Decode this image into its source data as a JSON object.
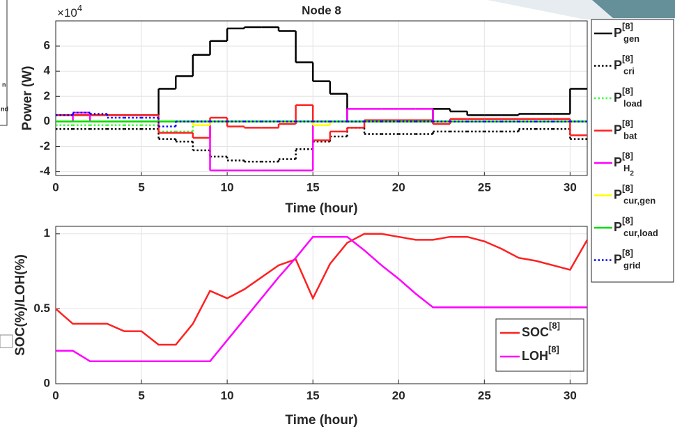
{
  "cropped_fragments": [
    "n",
    "nd"
  ],
  "chart_data": [
    {
      "type": "stairs",
      "title": "Node 8",
      "multiplier": "×10",
      "multiplier_exponent": "4",
      "x_label": "Time (hour)",
      "y_label": "Power (W)",
      "x": [
        0,
        1,
        2,
        3,
        4,
        5,
        6,
        7,
        8,
        9,
        10,
        11,
        12,
        13,
        14,
        15,
        16,
        17,
        18,
        19,
        20,
        21,
        22,
        23,
        24,
        25,
        26,
        27,
        28,
        29,
        30,
        31
      ],
      "xlim": [
        0,
        31
      ],
      "xticks": [
        0,
        5,
        10,
        15,
        20,
        25,
        30
      ],
      "ylim": [
        -4.3,
        8
      ],
      "yticks": [
        -4,
        -2,
        0,
        2,
        4,
        6
      ],
      "grid": true,
      "legend": "outside-right",
      "series": [
        {
          "name": "P",
          "superscript": "[8]",
          "subscript": "gen",
          "color": "#000000",
          "style": "solid",
          "values": [
            0.5,
            0.5,
            0.5,
            0.5,
            0.5,
            0.5,
            2.6,
            3.6,
            5.3,
            6.4,
            7.4,
            7.5,
            7.5,
            7.2,
            4.7,
            3.2,
            2.2,
            0,
            0,
            0,
            0,
            0,
            1.0,
            0.8,
            0.5,
            0.5,
            0.5,
            0.6,
            0.6,
            0.6,
            2.6,
            2.6
          ]
        },
        {
          "name": "P",
          "superscript": "[8]",
          "subscript": "cri",
          "color": "#000000",
          "style": "dotted",
          "values": [
            -0.6,
            -0.6,
            -0.6,
            -0.6,
            -0.6,
            -0.6,
            -1.4,
            -1.6,
            -2.3,
            -2.8,
            -3.1,
            -3.2,
            -3.2,
            -3.0,
            -2.2,
            -1.6,
            -1.2,
            -0.5,
            -1.0,
            -1.0,
            -1.0,
            -1.0,
            -0.8,
            -0.8,
            -0.8,
            -0.8,
            -0.8,
            -0.6,
            -0.6,
            -0.6,
            -1.4,
            -1.4
          ]
        },
        {
          "name": "P",
          "superscript": "[8]",
          "subscript": "load",
          "color": "#33ff33",
          "style": "dotted",
          "values": [
            -0.3,
            -0.3,
            -0.3,
            -0.3,
            -0.3,
            -0.3,
            -0.8,
            -0.8,
            0,
            0,
            0,
            0,
            0,
            0,
            0,
            0,
            0,
            0,
            0,
            0,
            0,
            0,
            0,
            0,
            0,
            0,
            0,
            0,
            0,
            0,
            0,
            0
          ]
        },
        {
          "name": "P",
          "superscript": "[8]",
          "subscript": "bat",
          "color": "#ff2020",
          "style": "solid",
          "values": [
            0.5,
            0.5,
            0.5,
            0.5,
            0.5,
            0.5,
            -0.9,
            -0.9,
            -1.3,
            0.3,
            -0.4,
            -0.5,
            -0.5,
            -0.2,
            1.3,
            -1.5,
            -0.8,
            -0.5,
            0.1,
            0.1,
            0.1,
            0.1,
            -0.2,
            0.2,
            0.2,
            0.2,
            0.2,
            0.2,
            0.2,
            0.2,
            -1.1,
            -1.1
          ]
        },
        {
          "name": "P",
          "superscript": "[8]",
          "subscript": "H",
          "subscript2": "2",
          "color": "#ff00ff",
          "style": "solid",
          "values": [
            0,
            0.7,
            0,
            0,
            0,
            0,
            0,
            0,
            0,
            -3.9,
            -3.9,
            -3.9,
            -3.9,
            -3.9,
            -3.9,
            0,
            0,
            1.0,
            1.0,
            1.0,
            1.0,
            1.0,
            0,
            0,
            0,
            0,
            0,
            0,
            0,
            0,
            0,
            0
          ]
        },
        {
          "name": "P",
          "superscript": "[8]",
          "subscript": "cur,gen",
          "color": "#ffff00",
          "style": "solid",
          "values": [
            0,
            0,
            0,
            0,
            0,
            0,
            0,
            0,
            -0.3,
            0,
            0,
            0,
            0,
            0,
            0,
            -0.3,
            0,
            0,
            0,
            0,
            0,
            0,
            0,
            0,
            0,
            0,
            0,
            0,
            0,
            0,
            0,
            0
          ]
        },
        {
          "name": "P",
          "superscript": "[8]",
          "subscript": "cur,load",
          "color": "#00dd00",
          "style": "solid",
          "values": [
            0,
            0,
            0,
            0,
            0,
            0,
            0,
            0,
            0,
            0,
            0,
            0,
            0,
            0,
            0,
            0,
            0,
            0,
            0,
            0,
            0,
            0,
            0,
            0,
            0,
            0,
            0,
            0,
            0,
            0,
            0,
            0
          ]
        },
        {
          "name": "P",
          "superscript": "[8]",
          "subscript": "grid",
          "color": "#0000ff",
          "style": "dotted",
          "values": [
            0.5,
            0.7,
            0.6,
            0.3,
            0.3,
            0.3,
            -0.4,
            0,
            0,
            0,
            0,
            0,
            0,
            0,
            0,
            0,
            0,
            0,
            0,
            0,
            0,
            0,
            0,
            0,
            0,
            0,
            0,
            0,
            0,
            0,
            0,
            0
          ]
        }
      ]
    },
    {
      "type": "line",
      "x_label": "Time (hour)",
      "y_label": "SOC(%)/LOH(%)",
      "x": [
        0,
        1,
        2,
        3,
        4,
        5,
        6,
        7,
        8,
        9,
        10,
        11,
        12,
        13,
        14,
        15,
        16,
        17,
        18,
        19,
        20,
        21,
        22,
        23,
        24,
        25,
        26,
        27,
        28,
        29,
        30,
        31
      ],
      "xlim": [
        0,
        31
      ],
      "xticks": [
        0,
        5,
        10,
        15,
        20,
        25,
        30
      ],
      "ylim": [
        0,
        1.05
      ],
      "yticks": [
        0,
        0.5,
        1
      ],
      "grid": true,
      "legend": "lower-right",
      "series": [
        {
          "name": "SOC",
          "superscript": "[8]",
          "color": "#ff2020",
          "style": "solid",
          "values": [
            0.5,
            0.4,
            0.4,
            0.4,
            0.35,
            0.35,
            0.26,
            0.26,
            0.4,
            0.62,
            0.57,
            0.63,
            0.71,
            0.79,
            0.83,
            0.57,
            0.8,
            0.94,
            1.0,
            1.0,
            0.98,
            0.96,
            0.96,
            0.98,
            0.98,
            0.95,
            0.9,
            0.84,
            0.82,
            0.79,
            0.76,
            0.96
          ]
        },
        {
          "name": "LOH",
          "superscript": "[8]",
          "color": "#ff00ff",
          "style": "solid",
          "values": [
            0.22,
            0.22,
            0.15,
            0.15,
            0.15,
            0.15,
            0.15,
            0.15,
            0.15,
            0.15,
            0.29,
            0.43,
            0.57,
            0.71,
            0.84,
            0.98,
            0.98,
            0.98,
            0.89,
            0.79,
            0.7,
            0.6,
            0.51,
            0.51,
            0.51,
            0.51,
            0.51,
            0.51,
            0.51,
            0.51,
            0.51,
            0.51
          ]
        }
      ]
    }
  ]
}
